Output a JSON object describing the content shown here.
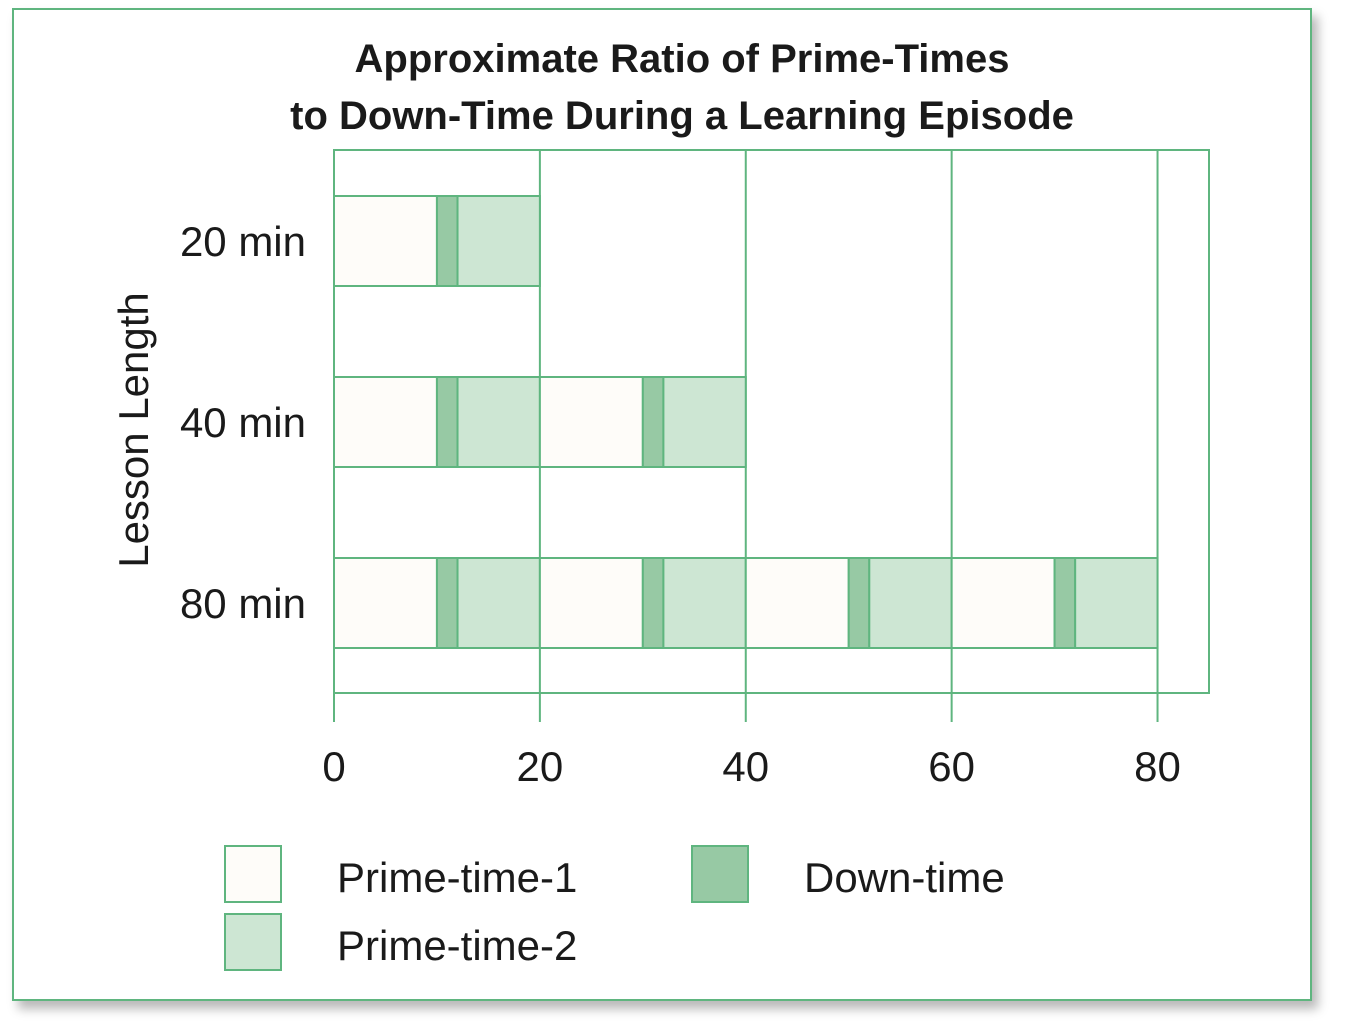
{
  "chart_data": {
    "type": "bar",
    "orientation": "horizontal-stacked",
    "title": [
      "Approximate Ratio of Prime-Times",
      "to Down-Time During a Learning Episode"
    ],
    "ylabel": "Lesson Length",
    "xlabel": "",
    "xlim": [
      0,
      85
    ],
    "xticks": [
      "0",
      "20",
      "40",
      "60",
      "80"
    ],
    "grid": true,
    "legend_position": "bottom",
    "categories": [
      "20 min",
      "40 min",
      "80 min"
    ],
    "segment_types": [
      {
        "key": "pt1",
        "name": "Prime-time-1",
        "color": "#fefcf9"
      },
      {
        "key": "dt",
        "name": "Down-time",
        "color": "#97c9a4"
      },
      {
        "key": "pt2",
        "name": "Prime-time-2",
        "color": "#cde6d3"
      }
    ],
    "rows": [
      {
        "category": "20 min",
        "segments": [
          {
            "type": "pt1",
            "start": 0,
            "end": 10
          },
          {
            "type": "dt",
            "start": 10,
            "end": 12
          },
          {
            "type": "pt2",
            "start": 12,
            "end": 20
          }
        ]
      },
      {
        "category": "40 min",
        "segments": [
          {
            "type": "pt1",
            "start": 0,
            "end": 10
          },
          {
            "type": "dt",
            "start": 10,
            "end": 12
          },
          {
            "type": "pt2",
            "start": 12,
            "end": 20
          },
          {
            "type": "pt1",
            "start": 20,
            "end": 30
          },
          {
            "type": "dt",
            "start": 30,
            "end": 32
          },
          {
            "type": "pt2",
            "start": 32,
            "end": 40
          }
        ]
      },
      {
        "category": "80 min",
        "segments": [
          {
            "type": "pt1",
            "start": 0,
            "end": 10
          },
          {
            "type": "dt",
            "start": 10,
            "end": 12
          },
          {
            "type": "pt2",
            "start": 12,
            "end": 20
          },
          {
            "type": "pt1",
            "start": 20,
            "end": 30
          },
          {
            "type": "dt",
            "start": 30,
            "end": 32
          },
          {
            "type": "pt2",
            "start": 32,
            "end": 40
          },
          {
            "type": "pt1",
            "start": 40,
            "end": 50
          },
          {
            "type": "dt",
            "start": 50,
            "end": 52
          },
          {
            "type": "pt2",
            "start": 52,
            "end": 60
          },
          {
            "type": "pt1",
            "start": 60,
            "end": 70
          },
          {
            "type": "dt",
            "start": 70,
            "end": 72
          },
          {
            "type": "pt2",
            "start": 72,
            "end": 80
          }
        ]
      }
    ],
    "line_color": "#5fb57f"
  }
}
